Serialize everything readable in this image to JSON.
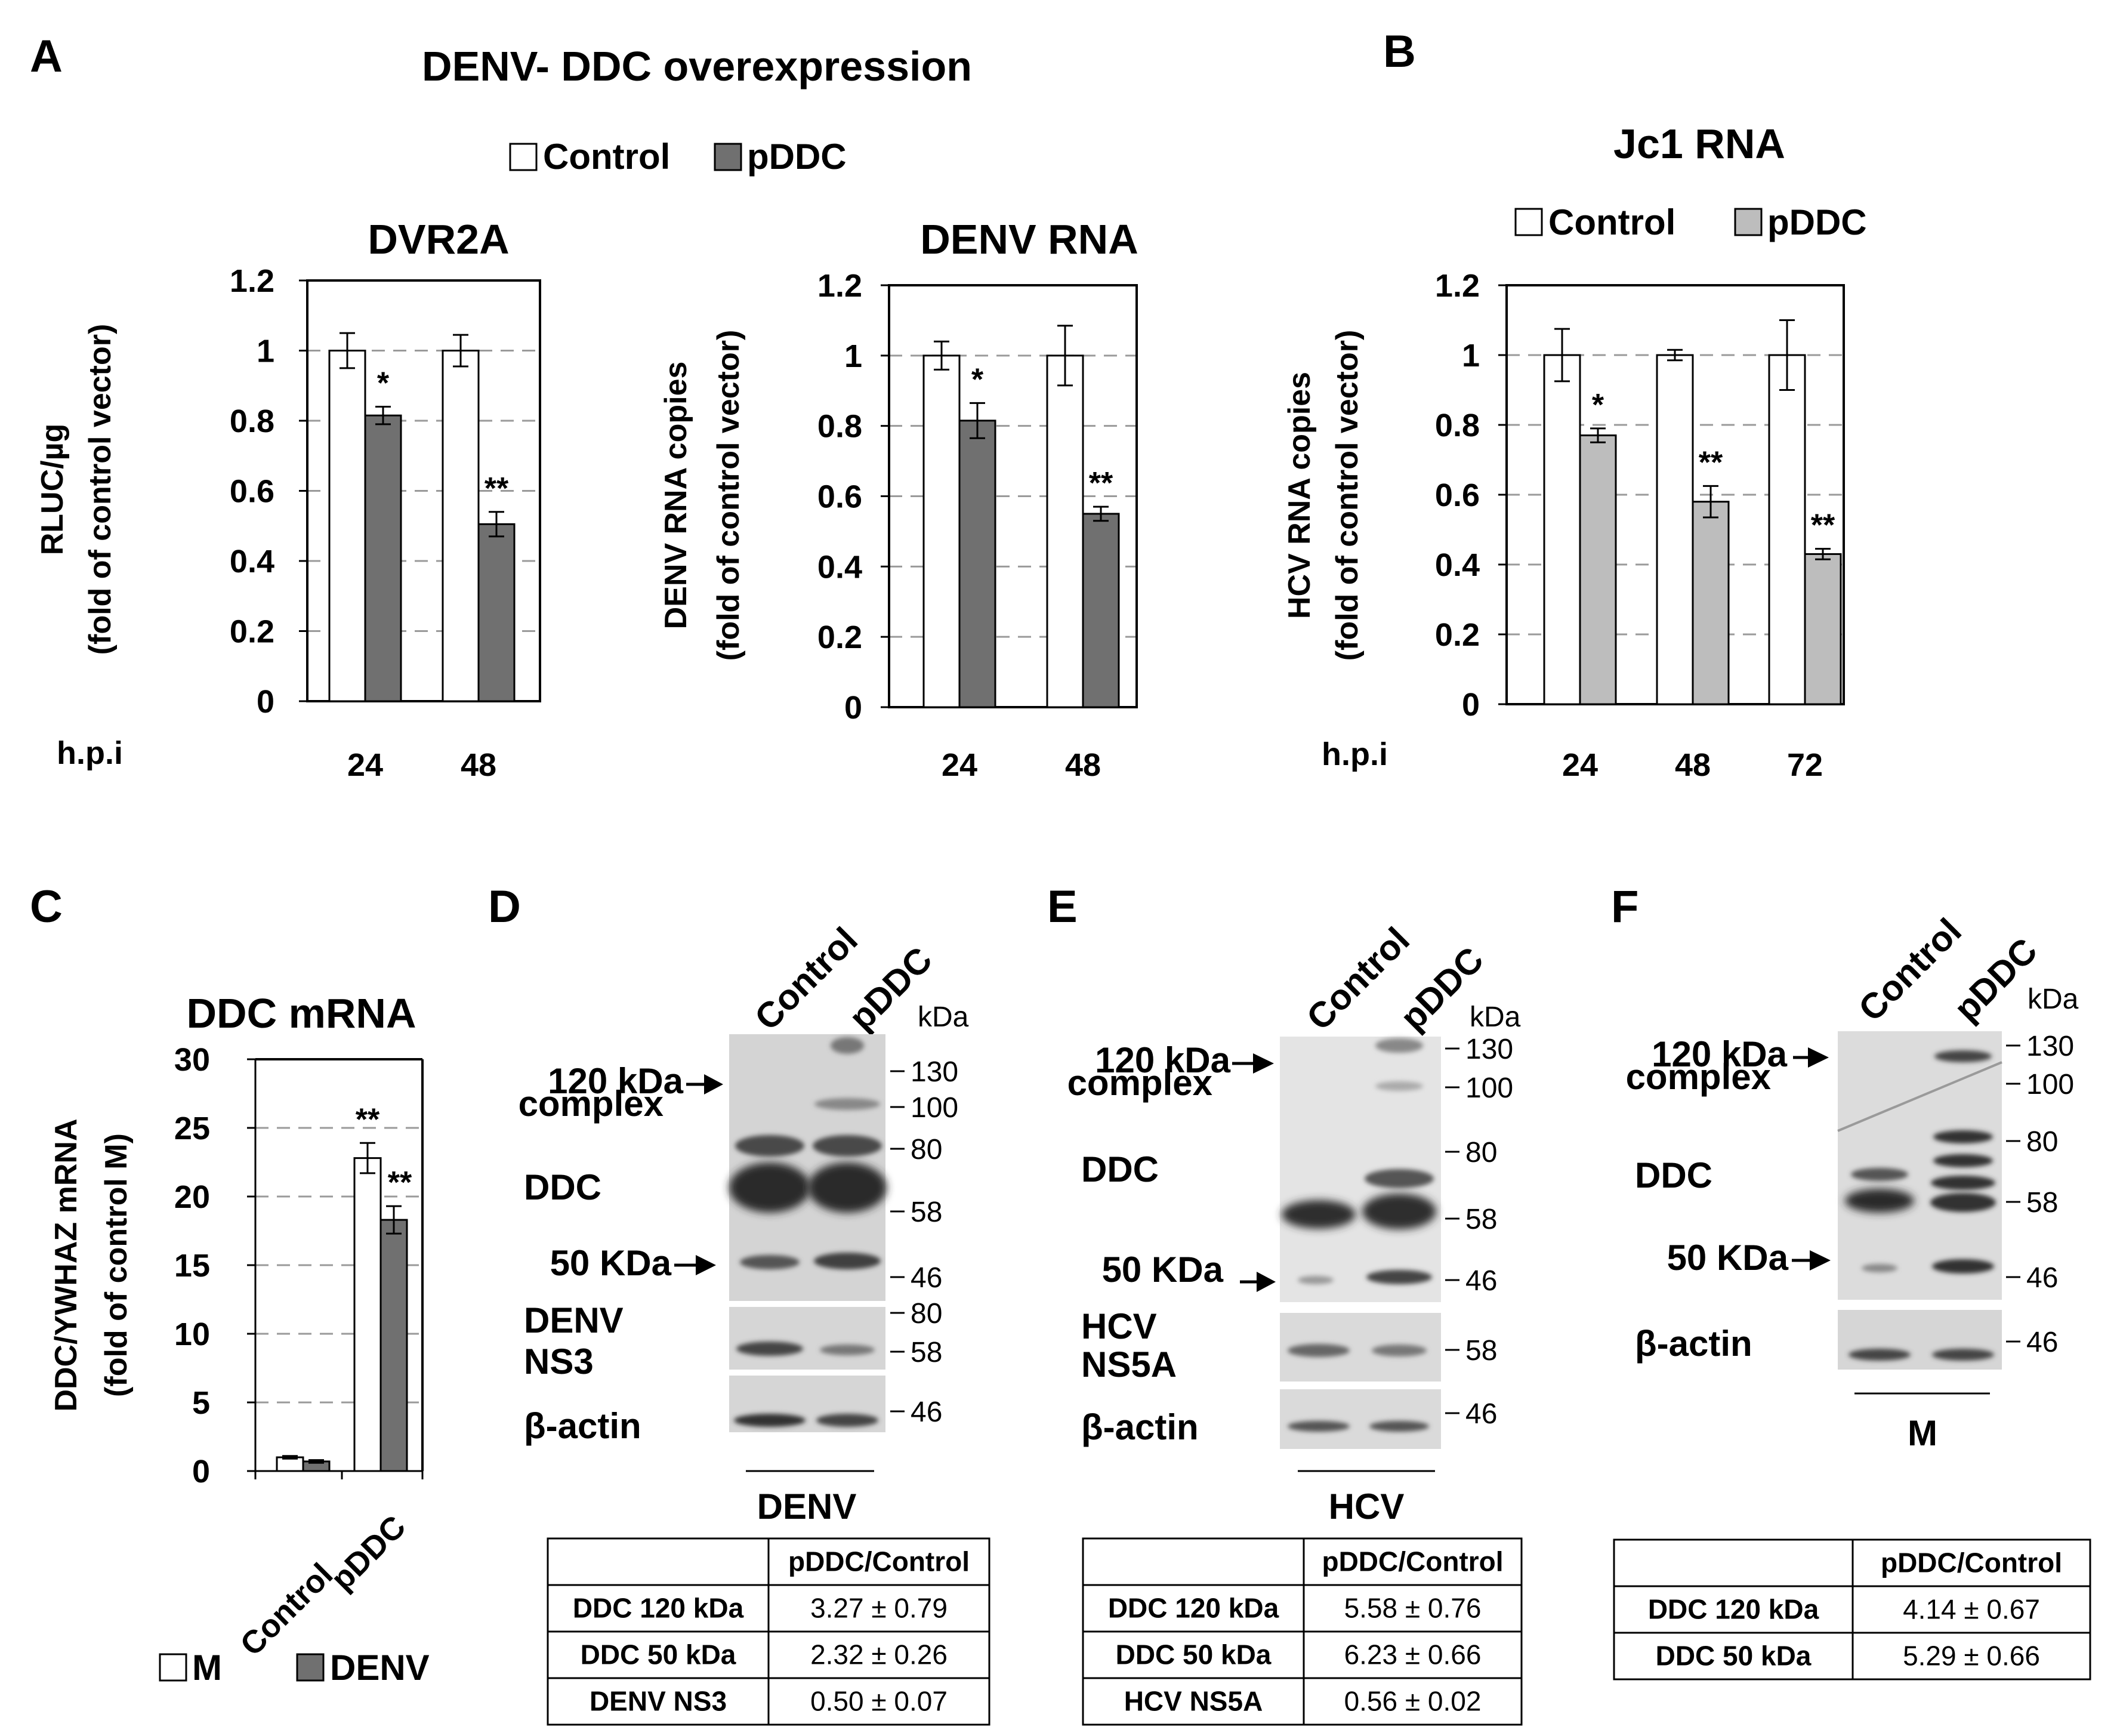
{
  "figure_title": "DENV- DDC overexpression",
  "panels": {
    "A": "A",
    "B": "B",
    "C": "C",
    "D": "D",
    "E": "E",
    "F": "F"
  },
  "legend_A": {
    "control": "Control",
    "pddc": "pDDC"
  },
  "legend_B": {
    "control": "Control",
    "pddc": "pDDC"
  },
  "legend_C": {
    "m": "M",
    "denv": "DENV"
  },
  "colors": {
    "control": "#ffffff",
    "pddc_dark": "#707070",
    "pddc_light": "#bdbdbd",
    "grid": "#9a9a9a"
  },
  "yticks_A": [
    "0",
    "0.2",
    "0.4",
    "0.6",
    "0.8",
    "1",
    "1.2"
  ],
  "yticks_C": [
    "0",
    "5",
    "10",
    "15",
    "20",
    "25",
    "30"
  ],
  "chart_data": [
    {
      "id": "dvr2a",
      "type": "bar",
      "title": "DVR2A",
      "ylabel_1": "RLUC/µg",
      "ylabel_2": "(fold of control vector)",
      "xlabel": "h.p.i",
      "categories": [
        "24",
        "48"
      ],
      "ylim": [
        0,
        1.2
      ],
      "series": [
        {
          "name": "Control",
          "values": [
            1.0,
            1.0
          ],
          "errors": [
            0.05,
            0.045
          ]
        },
        {
          "name": "pDDC",
          "values": [
            0.815,
            0.505
          ],
          "errors": [
            0.025,
            0.035
          ]
        }
      ],
      "significance": [
        "*",
        "**"
      ]
    },
    {
      "id": "denv-rna",
      "type": "bar",
      "title": "DENV RNA",
      "ylabel_1": "DENV RNA copies",
      "ylabel_2": "(fold of control vector)",
      "xlabel": "",
      "categories": [
        "24",
        "48"
      ],
      "ylim": [
        0,
        1.2
      ],
      "series": [
        {
          "name": "Control",
          "values": [
            1.0,
            1.0
          ],
          "errors": [
            0.04,
            0.085
          ]
        },
        {
          "name": "pDDC",
          "values": [
            0.815,
            0.55
          ],
          "errors": [
            0.05,
            0.02
          ]
        }
      ],
      "significance": [
        "*",
        "**"
      ]
    },
    {
      "id": "jc1-rna",
      "type": "bar",
      "title": "Jc1 RNA",
      "ylabel_1": "HCV RNA copies",
      "ylabel_2": "(fold of control vector)",
      "xlabel": "h.p.i",
      "categories": [
        "24",
        "48",
        "72"
      ],
      "ylim": [
        0,
        1.2
      ],
      "series": [
        {
          "name": "Control",
          "values": [
            1.0,
            1.0,
            1.0
          ],
          "errors": [
            0.075,
            0.015,
            0.1
          ]
        },
        {
          "name": "pDDC",
          "values": [
            0.77,
            0.58,
            0.43
          ],
          "errors": [
            0.02,
            0.045,
            0.015
          ]
        }
      ],
      "significance": [
        "*",
        "**",
        "**"
      ]
    },
    {
      "id": "ddc-mrna",
      "type": "bar",
      "title": "DDC mRNA",
      "ylabel_1": "DDC/YWHAZ mRNA",
      "ylabel_2": "(fold of control M)",
      "xlabel": "",
      "categories": [
        "Control",
        "pDDC"
      ],
      "ylim": [
        0,
        30
      ],
      "series": [
        {
          "name": "M",
          "values": [
            1.0,
            22.8
          ],
          "errors": [
            0.1,
            1.1
          ]
        },
        {
          "name": "DENV",
          "values": [
            0.7,
            18.3
          ],
          "errors": [
            0.1,
            1.0
          ]
        }
      ],
      "significance": [
        "",
        "**"
      ],
      "significance_2": [
        "",
        "**"
      ]
    },
    {
      "id": "table-d",
      "type": "table",
      "caption": "DENV",
      "columns": [
        "",
        "pDDC/Control"
      ],
      "rows": [
        [
          "DDC 120 kDa",
          "3.27 ± 0.79"
        ],
        [
          "DDC 50 kDa",
          "2.32 ± 0.26"
        ],
        [
          "DENV NS3",
          "0.50 ± 0.07"
        ]
      ]
    },
    {
      "id": "table-e",
      "type": "table",
      "caption": "HCV",
      "columns": [
        "",
        "pDDC/Control"
      ],
      "rows": [
        [
          "DDC 120 kDa",
          "5.58 ± 0.76"
        ],
        [
          "DDC 50 kDa",
          "6.23 ± 0.66"
        ],
        [
          "HCV NS5A",
          "0.56 ± 0.02"
        ]
      ]
    },
    {
      "id": "table-f",
      "type": "table",
      "caption": "M",
      "columns": [
        "",
        "pDDC/Control"
      ],
      "rows": [
        [
          "DDC 120 kDa",
          "4.14 ± 0.67"
        ],
        [
          "DDC 50 kDa",
          "5.29 ± 0.66"
        ]
      ]
    }
  ],
  "blots": {
    "lanes": [
      "Control",
      "pDDC"
    ],
    "kda_label": "kDa",
    "complex_1": "120 kDa",
    "complex_2": "complex",
    "ddc": "DDC",
    "kda50": "50 KDa",
    "actin": "β-actin",
    "D": {
      "protein_1": "DENV",
      "protein_2": "NS3",
      "caption": "DENV",
      "markers_main": [
        "130",
        "100",
        "80",
        "58",
        "46"
      ],
      "markers_mid": [
        "80",
        "58"
      ],
      "markers_actin": [
        "46"
      ]
    },
    "E": {
      "protein_1": "HCV",
      "protein_2": "NS5A",
      "caption": "HCV",
      "markers_main": [
        "130",
        "100",
        "80",
        "58",
        "46"
      ],
      "markers_mid": [
        "58"
      ],
      "markers_actin": [
        "46"
      ]
    },
    "F": {
      "caption": "M",
      "markers_main": [
        "130",
        "100",
        "80",
        "58",
        "46"
      ],
      "markers_actin": [
        "46"
      ]
    }
  }
}
